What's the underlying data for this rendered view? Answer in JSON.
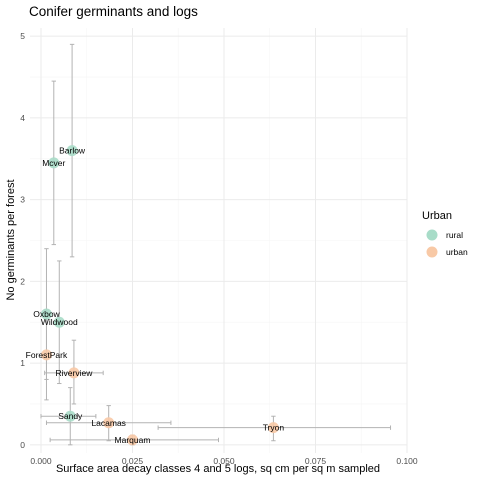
{
  "chart_data": {
    "type": "scatter",
    "title": "Conifer germinants and logs",
    "xlabel": "Surface area decay classes 4 and 5 logs, sq cm per sq m sampled",
    "ylabel": "No germinants per forest",
    "xlim": [
      -0.003,
      0.1
    ],
    "ylim": [
      -0.1,
      5.1
    ],
    "x_ticks": [
      0.0,
      0.025,
      0.05,
      0.075,
      0.1
    ],
    "x_tick_labels": [
      "0.000",
      "0.025",
      "0.050",
      "0.075",
      "0.100"
    ],
    "y_ticks": [
      0,
      1,
      2,
      3,
      4,
      5
    ],
    "y_tick_labels": [
      "0",
      "1",
      "2",
      "3",
      "4",
      "5"
    ],
    "grid": true,
    "legend": {
      "title": "Urban",
      "placement": "right",
      "entries": [
        {
          "label": "rural",
          "color": "#a8dcc8"
        },
        {
          "label": "urban",
          "color": "#f8c9a6"
        }
      ]
    },
    "series": [
      {
        "name": "rural",
        "color": "#a8dcc8",
        "points": [
          {
            "label": "Barlow",
            "x": 0.0085,
            "y": 3.6,
            "y_err": [
              2.3,
              4.9
            ]
          },
          {
            "label": "Mcver",
            "x": 0.0035,
            "y": 3.45,
            "y_err": [
              2.45,
              4.45
            ]
          },
          {
            "label": "Oxbow",
            "x": 0.0015,
            "y": 1.6,
            "y_err": [
              0.8,
              2.4
            ]
          },
          {
            "label": "Wildwood",
            "x": 0.005,
            "y": 1.5,
            "y_err": [
              0.75,
              2.25
            ]
          },
          {
            "label": "Sandy",
            "x": 0.008,
            "y": 0.35,
            "y_err": [
              0.0,
              0.7
            ],
            "x_err": [
              0.0,
              0.015
            ]
          }
        ]
      },
      {
        "name": "urban",
        "color": "#f8c9a6",
        "points": [
          {
            "label": "ForestPark",
            "x": 0.0015,
            "y": 1.1,
            "y_err": [
              0.55,
              1.65
            ]
          },
          {
            "label": "Riverview",
            "x": 0.009,
            "y": 0.88,
            "y_err": [
              0.5,
              1.28
            ],
            "x_err": [
              0.001,
              0.017
            ]
          },
          {
            "label": "Lacamas",
            "x": 0.0185,
            "y": 0.27,
            "y_err": [
              0.05,
              0.48
            ],
            "x_err": [
              0.0015,
              0.0355
            ]
          },
          {
            "label": "Tryon",
            "x": 0.0635,
            "y": 0.21,
            "y_err": [
              0.05,
              0.35
            ],
            "x_err": [
              0.032,
              0.0955
            ]
          },
          {
            "label": "Marquam",
            "x": 0.025,
            "y": 0.06,
            "y_err": [
              0.0,
              0.12
            ],
            "x_err": [
              0.0025,
              0.0485
            ]
          }
        ]
      }
    ]
  }
}
